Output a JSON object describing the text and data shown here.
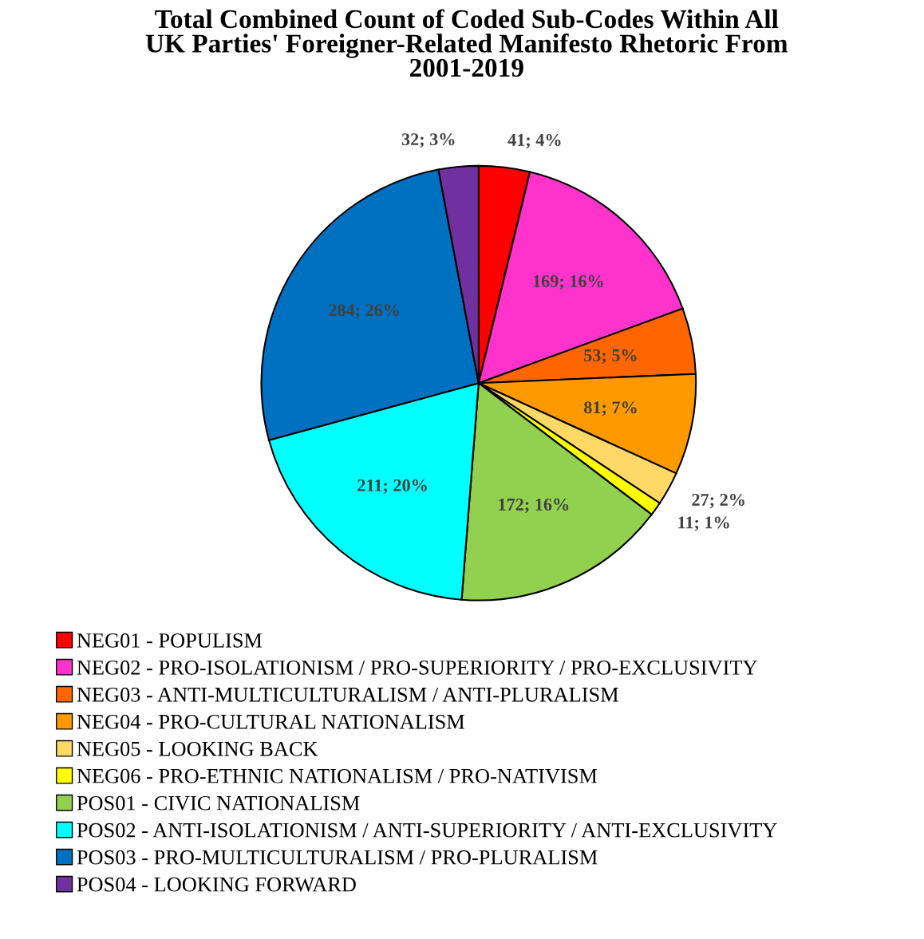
{
  "chart_data": {
    "type": "pie",
    "title": "Total Combined Count of Coded Sub-Codes Within All\nUK Parties' Foreigner-Related Manifesto Rhetoric From\n2001-2019",
    "categories": [
      "NEG01 - POPULISM",
      "NEG02 - PRO-ISOLATIONISM / PRO-SUPERIORITY / PRO-EXCLUSIVITY",
      "NEG03 - ANTI-MULTICULTURALISM / ANTI-PLURALISM",
      "NEG04 - PRO-CULTURAL NATIONALISM",
      "NEG05 - LOOKING BACK",
      "NEG06 - PRO-ETHNIC NATIONALISM / PRO-NATIVISM",
      "POS01 - CIVIC NATIONALISM",
      "POS02 - ANTI-ISOLATIONISM / ANTI-SUPERIORITY / ANTI-EXCLUSIVITY",
      "POS03 - PRO-MULTICULTURALISM / PRO-PLURALISM",
      "POS04 - LOOKING FORWARD"
    ],
    "values": [
      41,
      169,
      53,
      81,
      27,
      11,
      172,
      211,
      284,
      32
    ],
    "value_labels": [
      "41; 4%",
      "169; 16%",
      "53; 5%",
      "81; 7%",
      "27; 2%",
      "11; 1%",
      "172; 16%",
      "211; 20%",
      "284; 26%",
      "32; 3%"
    ],
    "colors": [
      "#ff0000",
      "#ff33cc",
      "#ff6600",
      "#ff9900",
      "#ffd966",
      "#ffff00",
      "#92d050",
      "#00ffff",
      "#0070c0",
      "#7030a0"
    ],
    "legend": "bottom"
  }
}
